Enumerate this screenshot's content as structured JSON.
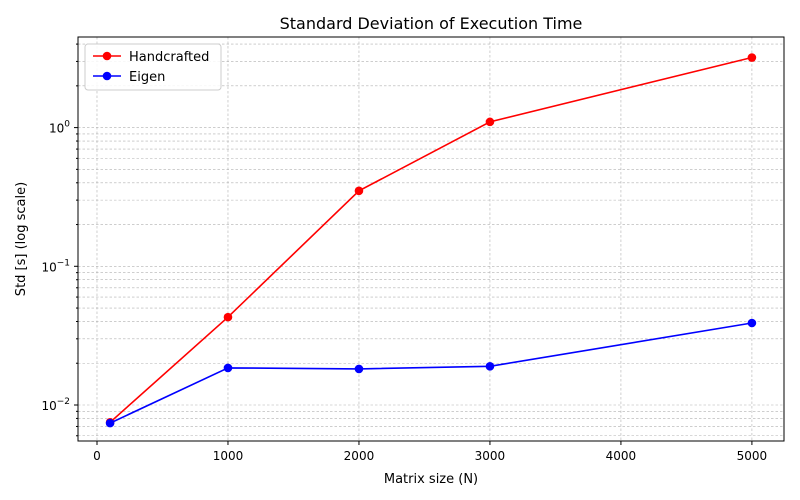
{
  "chart_data": {
    "type": "line",
    "title": "Standard Deviation of Execution Time",
    "xlabel": "Matrix size (N)",
    "ylabel": "Std [s] (log scale)",
    "x": [
      100,
      1000,
      2000,
      3000,
      5000
    ],
    "series": [
      {
        "name": "Handcrafted",
        "color": "#ff0000",
        "values": [
          0.0075,
          0.043,
          0.35,
          1.1,
          3.2
        ]
      },
      {
        "name": "Eigen",
        "color": "#0000ff",
        "values": [
          0.0074,
          0.0185,
          0.0182,
          0.019,
          0.039
        ]
      }
    ],
    "xlim": [
      -145,
      5245
    ],
    "ylim": [
      0.0055,
      4.5
    ],
    "yscale": "log",
    "xticks": [
      {
        "value": 0,
        "label": "0"
      },
      {
        "value": 1000,
        "label": "1000"
      },
      {
        "value": 2000,
        "label": "2000"
      },
      {
        "value": 3000,
        "label": "3000"
      },
      {
        "value": 4000,
        "label": "4000"
      },
      {
        "value": 5000,
        "label": "5000"
      }
    ],
    "yticks": [
      {
        "value": 0.01,
        "label_base": "10",
        "label_exp": "−2"
      },
      {
        "value": 0.1,
        "label_base": "10",
        "label_exp": "−1"
      },
      {
        "value": 1,
        "label_base": "10",
        "label_exp": "0"
      }
    ],
    "grid": true,
    "legend_position": "top-left"
  }
}
